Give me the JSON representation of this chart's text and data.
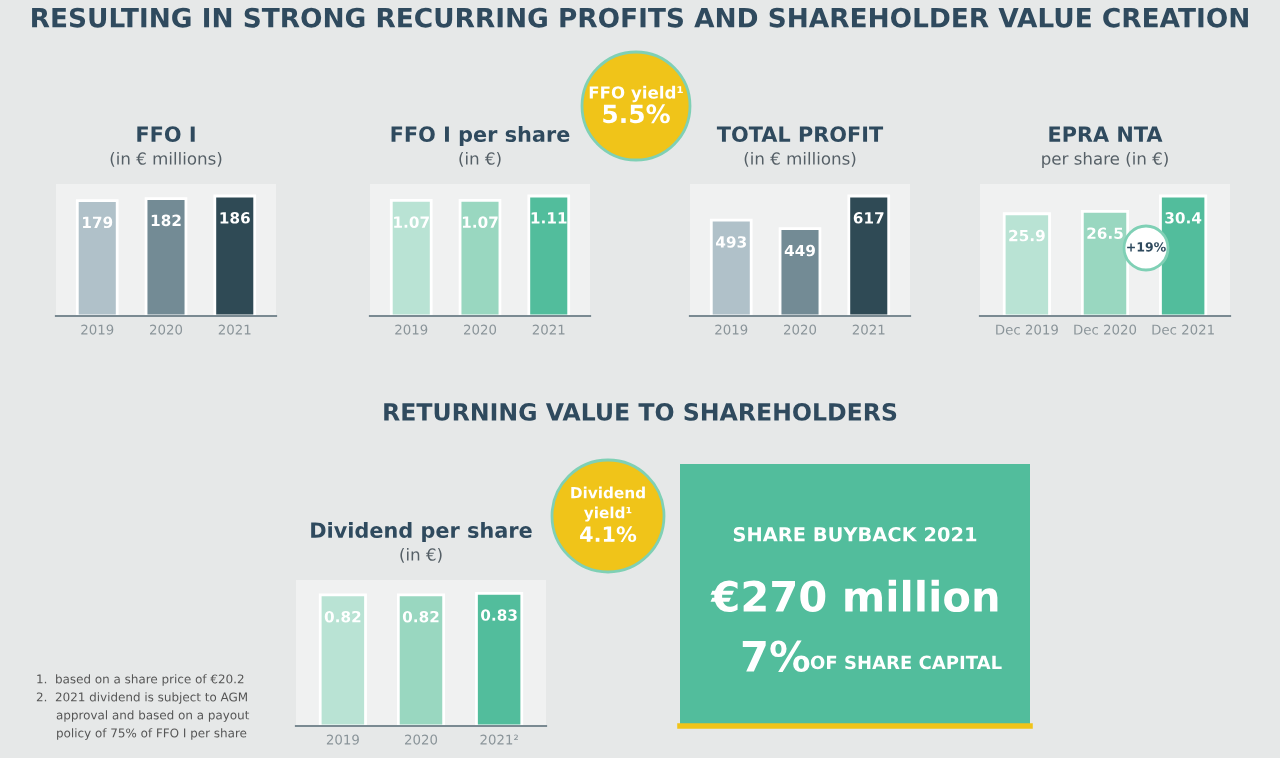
{
  "chart_data": [
    {
      "type": "bar",
      "title": "FFO I",
      "subtitle": "(in € millions)",
      "categories": [
        "2019",
        "2020",
        "2021"
      ],
      "values": [
        179,
        182,
        186
      ],
      "colors": [
        "#b0c1c9",
        "#738b95",
        "#2f4a55"
      ],
      "data_labels": true,
      "annotations": [
        "RESULTING IN STRONG RECURRING PROFITS AND SHAREHOLDER VALUE CREATION"
      ]
    },
    {
      "type": "bar",
      "title": "FFO I per share",
      "subtitle": "(in €)",
      "categories": [
        "2019",
        "2020",
        "2021"
      ],
      "values": [
        1.07,
        1.07,
        1.11
      ],
      "colors": [
        "#b9e3d4",
        "#99d7c0",
        "#52bd9c"
      ],
      "data_labels": true,
      "annotations": [
        "FFO yield¹",
        "5.5%"
      ]
    },
    {
      "type": "bar",
      "title": "TOTAL PROFIT",
      "subtitle": "(in € millions)",
      "categories": [
        "2019",
        "2020",
        "2021"
      ],
      "values": [
        493,
        449,
        617
      ],
      "colors": [
        "#b0c1c9",
        "#738b95",
        "#2f4a55"
      ],
      "data_labels": true
    },
    {
      "type": "bar",
      "title": "EPRA NTA",
      "subtitle": "per share (in €)",
      "categories": [
        "Dec 2019",
        "Dec 2020",
        "Dec 2021"
      ],
      "values": [
        25.9,
        26.5,
        30.4
      ],
      "colors": [
        "#b9e3d4",
        "#99d7c0",
        "#52bd9c"
      ],
      "data_labels": true,
      "annotations": [
        "+19%"
      ]
    },
    {
      "type": "bar",
      "title": "Dividend per share",
      "subtitle": "(in €)",
      "categories": [
        "2019",
        "2020",
        "2021²"
      ],
      "values": [
        0.82,
        0.82,
        0.83
      ],
      "colors": [
        "#b9e3d4",
        "#99d7c0",
        "#52bd9c"
      ],
      "data_labels": true,
      "annotations": [
        "RETURNING VALUE TO SHAREHOLDERS",
        "Dividend",
        "yield¹",
        "4.1%",
        "1.  based on a share price of €20.2",
        "2.  2021 dividend is subject to AGM",
        "approval and based on a payout",
        "policy of 75% of FFO I per share"
      ]
    },
    {
      "type": "other",
      "title": "SHARE BUYBACK 2021",
      "annotations": [
        "€270 million",
        "7%",
        "OF SHARE CAPITAL"
      ]
    }
  ]
}
